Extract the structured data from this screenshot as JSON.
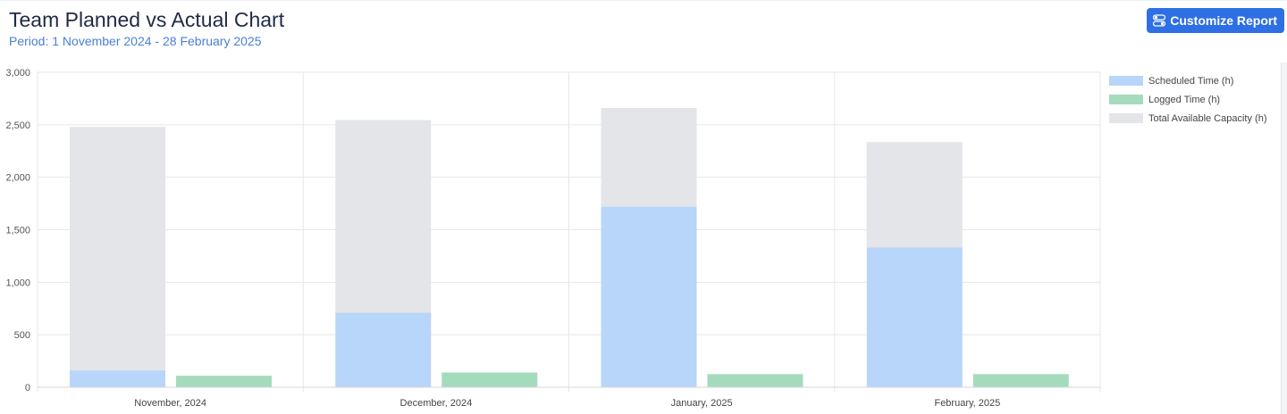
{
  "header": {
    "title": "Team Planned vs Actual Chart",
    "period": "Period: 1 November 2024 - 28 February 2025"
  },
  "toolbar": {
    "customize_label": "Customize Report",
    "customize_icon": "toggle-settings-icon"
  },
  "colors": {
    "scheduled": "#b8d5fa",
    "logged": "#a5dbbd",
    "capacity": "#e4e5e8",
    "accent": "#2f6fe4"
  },
  "chart_data": {
    "type": "bar",
    "title": "Team Planned vs Actual Chart",
    "categories": [
      "November, 2024",
      "December, 2024",
      "January, 2025",
      "February, 2025"
    ],
    "series": [
      {
        "name": "Scheduled Time (h)",
        "values": [
          160,
          710,
          1720,
          1330
        ]
      },
      {
        "name": "Logged Time (h)",
        "values": [
          110,
          140,
          125,
          125
        ]
      },
      {
        "name": "Total Available Capacity (h)",
        "values": [
          2480,
          2545,
          2660,
          2335
        ]
      }
    ],
    "yticks": [
      "0",
      "500",
      "1,000",
      "1,500",
      "2,000",
      "2,500",
      "3,000"
    ],
    "ylim": [
      0,
      3000
    ],
    "grid": true,
    "legend": "right",
    "xlabel": "",
    "ylabel": ""
  }
}
